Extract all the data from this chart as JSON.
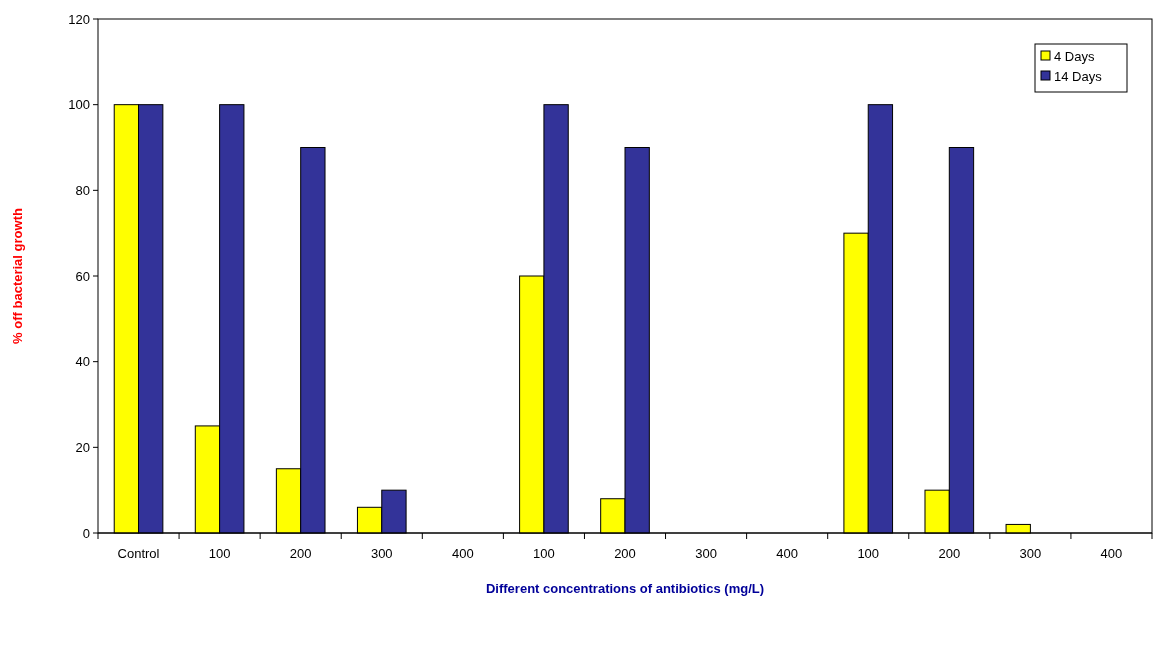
{
  "chart_data": {
    "type": "bar",
    "xlabel": "Different concentrations of antibiotics (mg/L)",
    "ylabel": "% off bacterial  growth",
    "categories": [
      "Control",
      "100",
      "200",
      "300",
      "400",
      "100",
      "200",
      "300",
      "400",
      "100",
      "200",
      "300",
      "400"
    ],
    "series": [
      {
        "name": "4 Days",
        "color": "#ffff00",
        "values": [
          100,
          25,
          15,
          6,
          0,
          60,
          8,
          0,
          0,
          70,
          10,
          2,
          0
        ]
      },
      {
        "name": "14 Days",
        "color": "#333399",
        "values": [
          100,
          100,
          90,
          10,
          0,
          100,
          90,
          0,
          0,
          100,
          90,
          0,
          0
        ]
      }
    ],
    "ylim": [
      0,
      120
    ],
    "yticks": [
      0,
      20,
      40,
      60,
      80,
      100,
      120
    ],
    "grid": false,
    "legend": "top right"
  }
}
